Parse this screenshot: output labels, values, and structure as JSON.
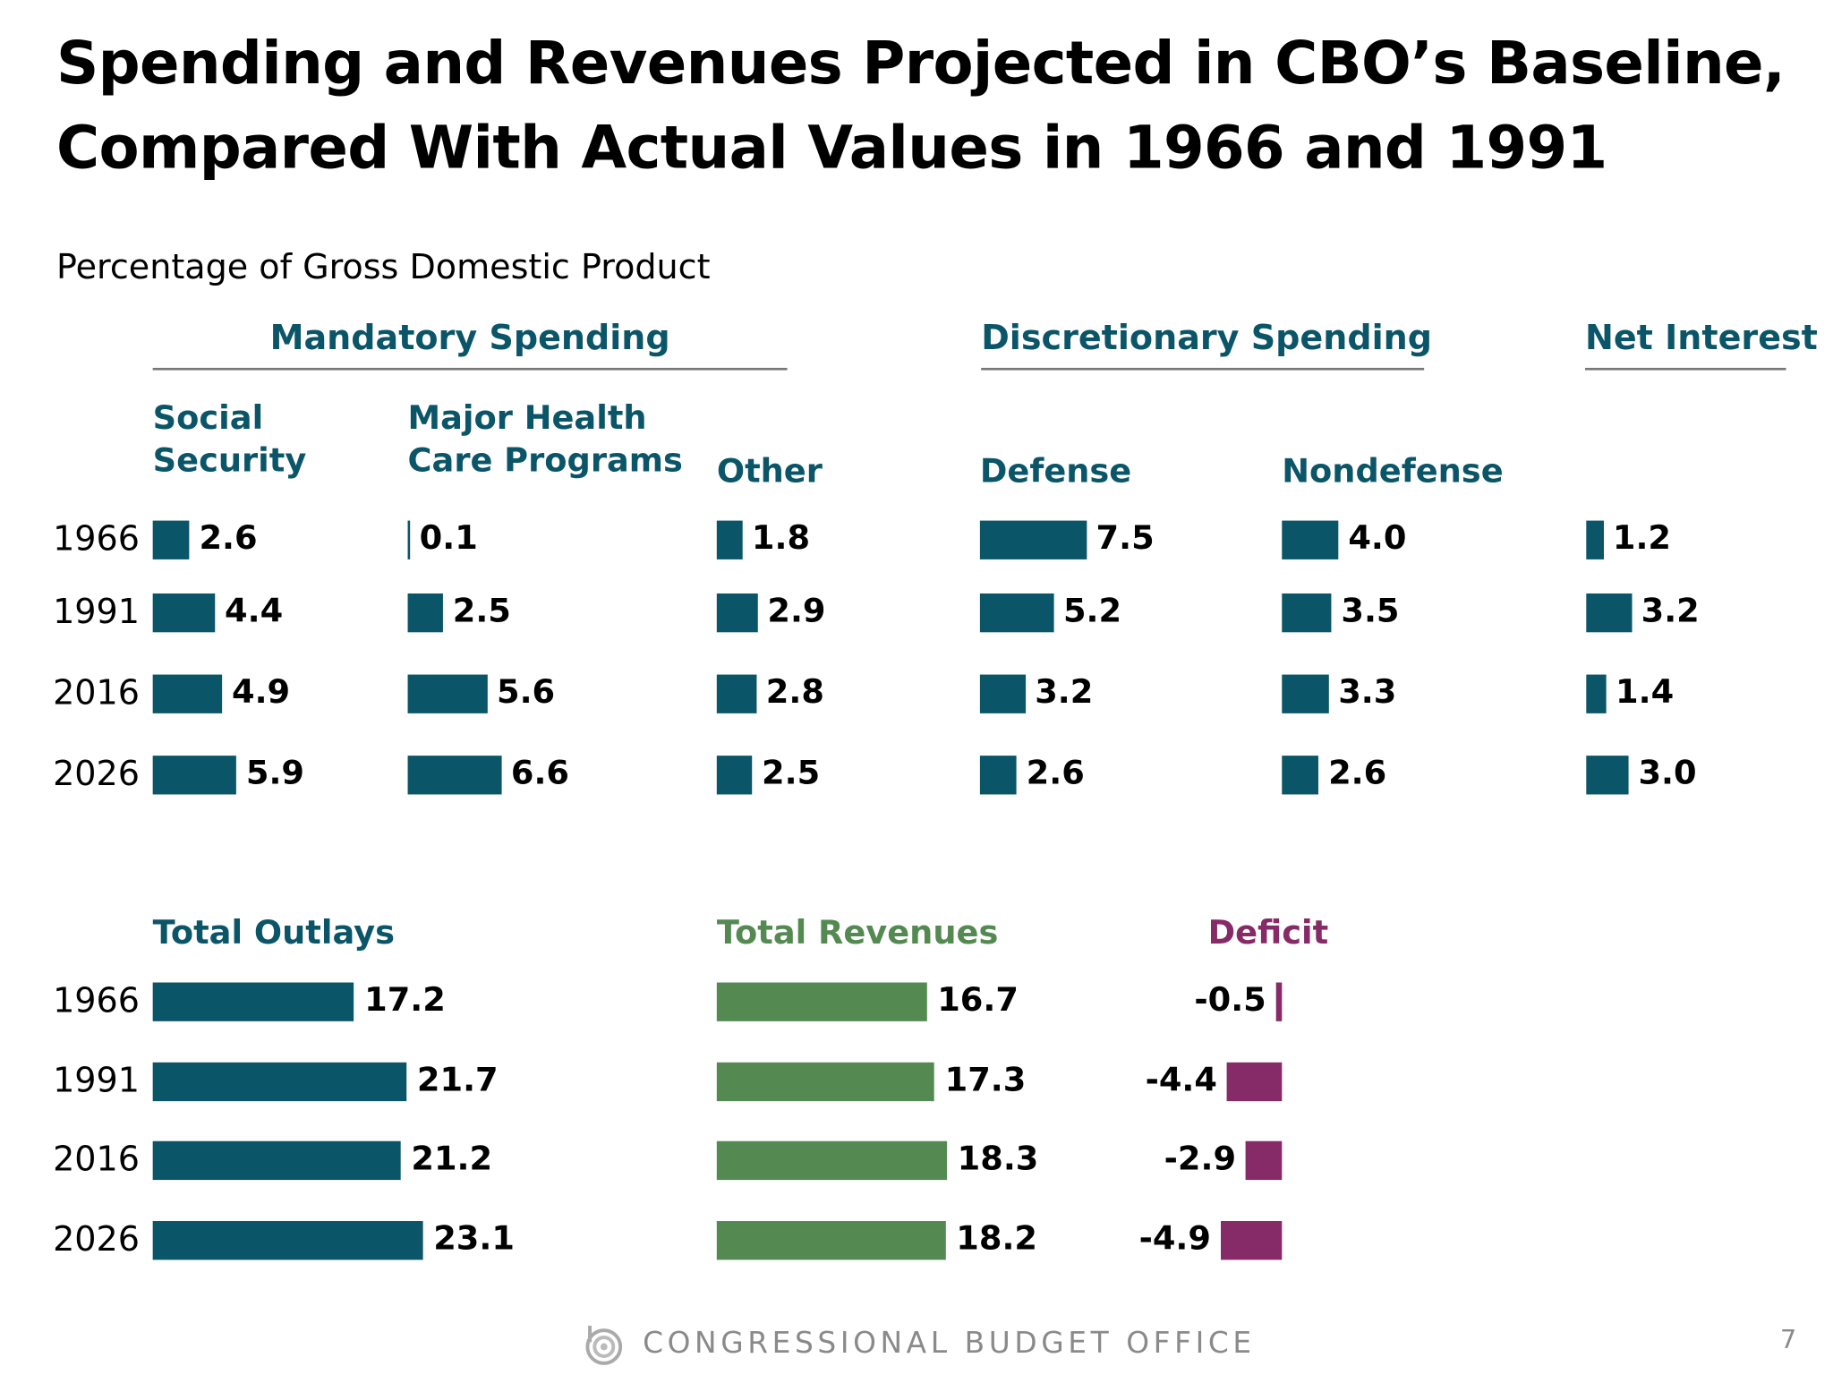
{
  "title_line1": "Spending and Revenues Projected in CBO’s Baseline,",
  "title_line2": "Compared With Actual Values in 1966 and 1991",
  "subtitle": "Percentage of Gross Domestic Product",
  "footer": {
    "org": "CONGRESSIONAL BUDGET OFFICE",
    "page": "7",
    "logo_icon": "cbo-logo-icon"
  },
  "colors": {
    "spending": "#0b5569",
    "revenues": "#548a52",
    "deficit": "#862a68",
    "heading": "#0b5569"
  },
  "chart_data": {
    "type": "bar",
    "orientation": "horizontal",
    "unit": "Percentage of Gross Domestic Product",
    "years": [
      "1966",
      "1991",
      "2016",
      "2026"
    ],
    "groups": [
      {
        "name": "Mandatory Spending",
        "series": [
          {
            "name": "Social Security",
            "name_lines": [
              "Social",
              "Security"
            ],
            "values": [
              2.6,
              4.4,
              4.9,
              5.9
            ]
          },
          {
            "name": "Major Health Care Programs",
            "name_lines": [
              "Major Health",
              "Care Programs"
            ],
            "values": [
              0.1,
              2.5,
              5.6,
              6.6
            ]
          },
          {
            "name": "Other",
            "name_lines": [
              "Other"
            ],
            "values": [
              1.8,
              2.9,
              2.8,
              2.5
            ]
          }
        ]
      },
      {
        "name": "Discretionary Spending",
        "series": [
          {
            "name": "Defense",
            "name_lines": [
              "Defense"
            ],
            "values": [
              7.5,
              5.2,
              3.2,
              2.6
            ]
          },
          {
            "name": "Nondefense",
            "name_lines": [
              "Nondefense"
            ],
            "values": [
              4.0,
              3.5,
              3.3,
              2.6
            ]
          }
        ]
      },
      {
        "name": "Net Interest",
        "series": [
          {
            "name": "",
            "name_lines": [],
            "values": [
              1.2,
              3.2,
              1.4,
              3.0
            ]
          }
        ]
      }
    ],
    "totals": [
      {
        "name": "Total Outlays",
        "values": [
          17.2,
          21.7,
          21.2,
          23.1
        ],
        "color": "#0b5569"
      },
      {
        "name": "Total Revenues",
        "values": [
          16.7,
          17.3,
          18.3,
          18.2
        ],
        "color": "#548a52"
      },
      {
        "name": "Deficit",
        "values": [
          -0.5,
          -4.4,
          -2.9,
          -4.9
        ],
        "color": "#862a68"
      }
    ]
  }
}
